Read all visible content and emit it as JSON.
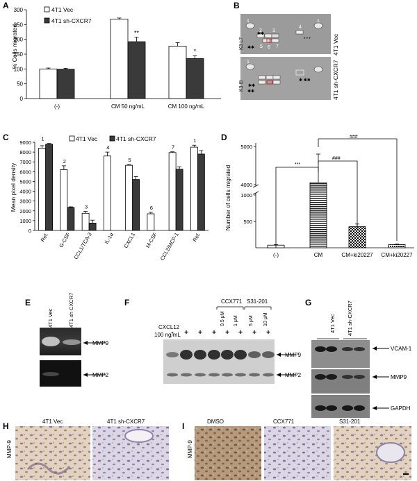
{
  "panel_letters": [
    "A",
    "B",
    "C",
    "D",
    "E",
    "F",
    "G",
    "H",
    "I"
  ],
  "colors": {
    "vec_fill": "#ffffff",
    "sh_fill": "#3a3a3a",
    "bar_stroke": "#000000"
  },
  "chart_data": [
    {
      "panel": "A",
      "type": "bar",
      "ylabel": "% Cells migrated",
      "ylim": [
        0,
        300
      ],
      "yticks": [
        "0",
        "50",
        "100",
        "150",
        "200",
        "250",
        "300"
      ],
      "categories": [
        "(-)",
        "CM 50 ng/mL",
        "CM 100 ng/mL"
      ],
      "series": [
        {
          "name": "4T1 Vec",
          "values": [
            100,
            268,
            177
          ],
          "errors": [
            3,
            4,
            12
          ]
        },
        {
          "name": "4T1 sh-CXCR7",
          "values": [
            99,
            192,
            135
          ],
          "errors": [
            3,
            15,
            10
          ]
        }
      ],
      "annotations": [
        "",
        "**",
        "*"
      ],
      "grid": false,
      "legend": "top-left"
    },
    {
      "panel": "C",
      "type": "bar",
      "ylabel": "Mean pixel density",
      "ylim": [
        0,
        9000
      ],
      "yticks": [
        "0",
        "1000",
        "2000",
        "3000",
        "4000",
        "5000",
        "6000",
        "7000",
        "8000",
        "9000"
      ],
      "categories": [
        "Ref.",
        "G-CSF",
        "CCL1/TCA-3",
        "IL-1α",
        "CXCL1",
        "M-CSF",
        "CCL2/MCP-1",
        "Ref."
      ],
      "series": [
        {
          "name": "4T1 Vec",
          "values": [
            8400,
            6200,
            1750,
            7600,
            6650,
            1700,
            7950,
            8500
          ],
          "errors": [
            250,
            400,
            200,
            400,
            100,
            150,
            80,
            200
          ]
        },
        {
          "name": "4T1 sh-CXCR7",
          "values": [
            8800,
            2350,
            750,
            0,
            5200,
            0,
            6250,
            7800
          ],
          "errors": [
            80,
            60,
            300,
            0,
            300,
            0,
            250,
            350
          ]
        }
      ],
      "bar_numbers": [
        "1",
        "2",
        "3",
        "4",
        "5",
        "6",
        "7",
        "1"
      ],
      "grid": false,
      "legend": "top"
    },
    {
      "panel": "D",
      "type": "bar",
      "ylabel": "Number of cells migrated",
      "yticks_upper": [
        "4000",
        "5000"
      ],
      "yticks_lower": [
        "500",
        "1000"
      ],
      "axis_break": true,
      "categories": [
        "(-)",
        "CM",
        "CM+ki20227",
        "CM+ki20227"
      ],
      "values": [
        50,
        4050,
        400,
        60
      ],
      "errors": [
        10,
        750,
        50,
        10
      ],
      "significance": [
        "***",
        "###",
        "###"
      ],
      "grid": false
    }
  ],
  "panel_a": {
    "legend": [
      "4T1 Vec",
      "4T1 sh-CXCR7"
    ],
    "annotations": [
      "**",
      "*"
    ]
  },
  "panel_b": {
    "rows": [
      "4T1 Vec",
      "4T1 sh-CXCR7"
    ],
    "spot_numbers_top": [
      "1",
      "2",
      "3",
      "4",
      "1",
      "5",
      "6",
      "7"
    ],
    "spot_numbers_bottom": [
      "1"
    ],
    "blot_marks": [
      "K3 L7",
      "K3 I9"
    ]
  },
  "panel_e": {
    "lanes": [
      "4T1 Vec",
      "4T1 sh CXCR7"
    ],
    "arrows": [
      "MMP9",
      "MMP2"
    ]
  },
  "panel_f": {
    "treatment_row": [
      "CXCL12",
      "100 ng/mL"
    ],
    "lane_signs": [
      "-",
      "+",
      "+",
      "+",
      "+",
      "+",
      "+",
      "+"
    ],
    "groups": [
      "CCX771",
      "S31-201"
    ],
    "doses": [
      "0.5 μM",
      "1 μM",
      "5 μM",
      "10 μM"
    ],
    "arrows": [
      "MMP9",
      "MMP2"
    ]
  },
  "panel_g": {
    "groups": [
      "4T1 Vec",
      "4T1 sh-CXCR7"
    ],
    "arrows": [
      "VCAM-1",
      "MMP9",
      "GAPDH"
    ]
  },
  "panel_h": {
    "titles": [
      "4T1  Vec",
      "4T1 sh-CXCR7"
    ],
    "row_label": "MMP-9"
  },
  "panel_i": {
    "titles": [
      "DMSO",
      "CCX771",
      "S31-201"
    ],
    "row_label": "MMP-9"
  }
}
